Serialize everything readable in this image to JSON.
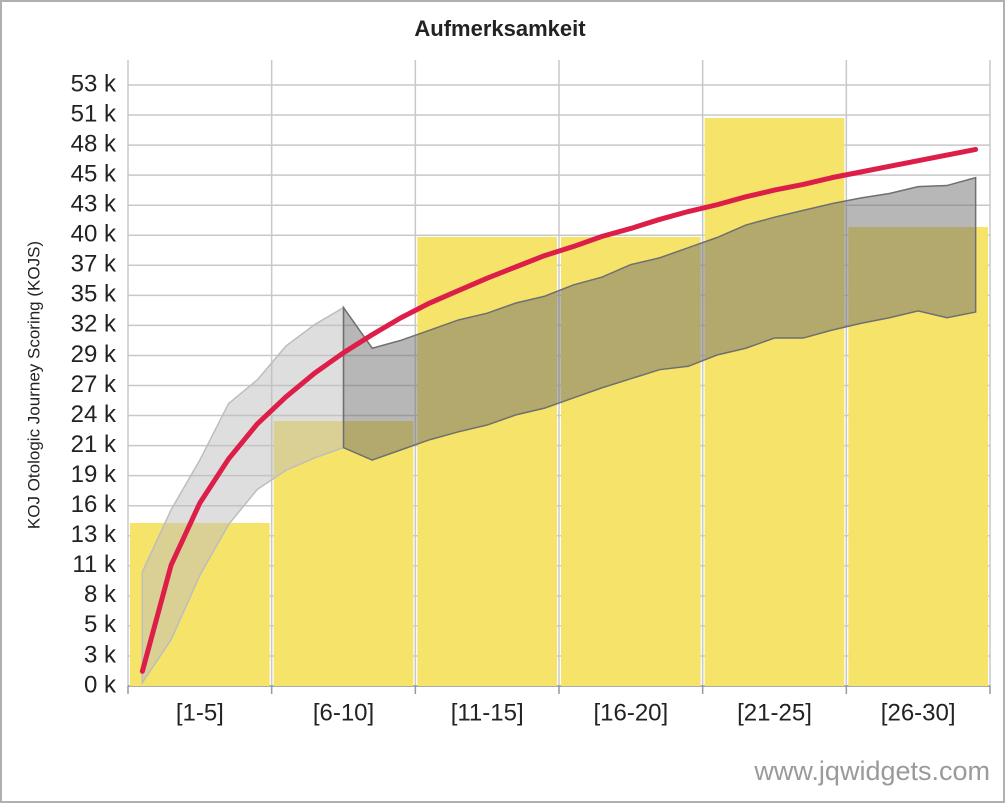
{
  "chart_data": {
    "type": "bar",
    "title": "Aufmerksamkeit",
    "y_label": "KOJ Otologic Journey Scoring (KOJS)",
    "watermark": "www.jqwidgets.com",
    "categories": [
      "[1-5]",
      "[6-10]",
      "[11-15]",
      "[16-20]",
      "[21-25]",
      "[26-30]"
    ],
    "values": [
      14430,
      23460,
      39750,
      39750,
      50280,
      40630
    ],
    "color": "#f6e36a",
    "ylim": [
      0,
      53200
    ],
    "yticks": [
      {
        "value": 0,
        "label": "0 k"
      },
      {
        "value": 2660,
        "label": "3 k"
      },
      {
        "value": 5320,
        "label": "5 k"
      },
      {
        "value": 7980,
        "label": "8 k"
      },
      {
        "value": 10640,
        "label": "11 k"
      },
      {
        "value": 13300,
        "label": "13 k"
      },
      {
        "value": 15960,
        "label": "16 k"
      },
      {
        "value": 18620,
        "label": "19 k"
      },
      {
        "value": 21280,
        "label": "21 k"
      },
      {
        "value": 23940,
        "label": "24 k"
      },
      {
        "value": 26600,
        "label": "27 k"
      },
      {
        "value": 29260,
        "label": "29 k"
      },
      {
        "value": 31920,
        "label": "32 k"
      },
      {
        "value": 34580,
        "label": "35 k"
      },
      {
        "value": 37240,
        "label": "37 k"
      },
      {
        "value": 39900,
        "label": "40 k"
      },
      {
        "value": 42560,
        "label": "43 k"
      },
      {
        "value": 45220,
        "label": "45 k"
      },
      {
        "value": 47880,
        "label": "48 k"
      },
      {
        "value": 50540,
        "label": "51 k"
      },
      {
        "value": 53200,
        "label": "53 k"
      }
    ],
    "grid": true,
    "xlim": [
      0.5,
      30.5
    ],
    "overlays": [
      {
        "type": "range",
        "color": "#bdbdbd",
        "x": [
          1,
          2,
          3,
          4,
          5,
          6,
          7,
          8
        ],
        "high": [
          10100,
          15600,
          20000,
          25000,
          27100,
          30100,
          32000,
          33500
        ],
        "low": [
          300,
          4100,
          9800,
          14300,
          17400,
          19100,
          20200,
          21100
        ]
      },
      {
        "type": "range",
        "color": "#6f6f6f",
        "x": [
          8,
          9,
          10,
          11,
          12,
          13,
          14,
          15,
          16,
          17,
          18,
          19,
          20,
          21,
          22,
          23,
          24,
          25,
          26,
          27,
          28,
          29,
          30
        ],
        "high": [
          33500,
          29900,
          30600,
          31500,
          32400,
          33000,
          33900,
          34500,
          35500,
          36200,
          37300,
          37900,
          38800,
          39700,
          40800,
          41500,
          42100,
          42700,
          43200,
          43600,
          44200,
          44300,
          45000
        ],
        "low": [
          21100,
          20000,
          20900,
          21800,
          22500,
          23100,
          24000,
          24600,
          25500,
          26400,
          27200,
          28000,
          28300,
          29300,
          29900,
          30800,
          30800,
          31500,
          32100,
          32600,
          33200,
          32600,
          33100
        ]
      },
      {
        "type": "line",
        "color": "#dc1e48",
        "x": [
          1,
          2,
          3,
          4,
          5,
          6,
          7,
          8,
          9,
          10,
          11,
          12,
          13,
          14,
          15,
          16,
          17,
          18,
          19,
          20,
          21,
          22,
          23,
          24,
          25,
          26,
          27,
          28,
          29,
          30
        ],
        "values": [
          1300,
          10700,
          16200,
          20100,
          23200,
          25600,
          27700,
          29500,
          31100,
          32600,
          33900,
          35000,
          36100,
          37100,
          38100,
          38900,
          39800,
          40500,
          41300,
          42000,
          42600,
          43300,
          43900,
          44400,
          45000,
          45500,
          46000,
          46500,
          47000,
          47500
        ]
      }
    ]
  }
}
